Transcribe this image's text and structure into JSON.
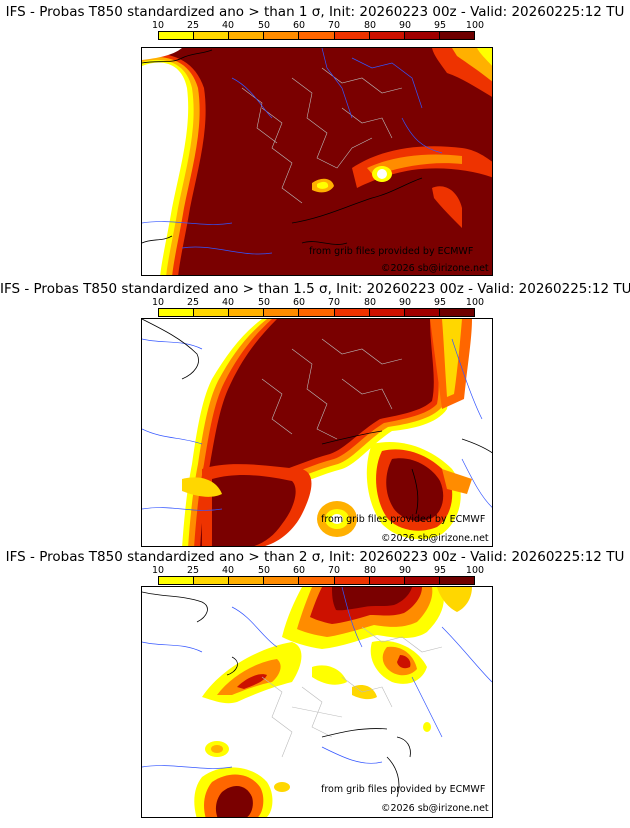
{
  "colorbar": {
    "ticks": [
      "10",
      "25",
      "40",
      "50",
      "60",
      "70",
      "80",
      "90",
      "95",
      "100"
    ],
    "colors": [
      "#ffff00",
      "#ffd700",
      "#ffb000",
      "#ff8c00",
      "#ff6600",
      "#ee3300",
      "#cc1100",
      "#a00000",
      "#6e0000"
    ]
  },
  "panels": [
    {
      "title": "IFS - Probas T850  standardized ano > than 1 σ, Init: 20260223 00z - Valid: 20260225:12 TU",
      "credit_source": "from grib files provided by ECMWF",
      "credit_copyright": "©2026 sb@irizone.net"
    },
    {
      "title": "IFS - Probas T850  standardized ano > than 1.5 σ, Init: 20260223 00z - Valid: 20260225:12 TU",
      "credit_source": "from grib files provided by ECMWF",
      "credit_copyright": "©2026 sb@irizone.net"
    },
    {
      "title": "IFS - Probas T850  standardized ano > than 2 σ, Init: 20260223 00z - Valid: 20260225:12 TU",
      "credit_source": "from grib files provided by ECMWF",
      "credit_copyright": "©2026 sb@irizone.net"
    }
  ]
}
